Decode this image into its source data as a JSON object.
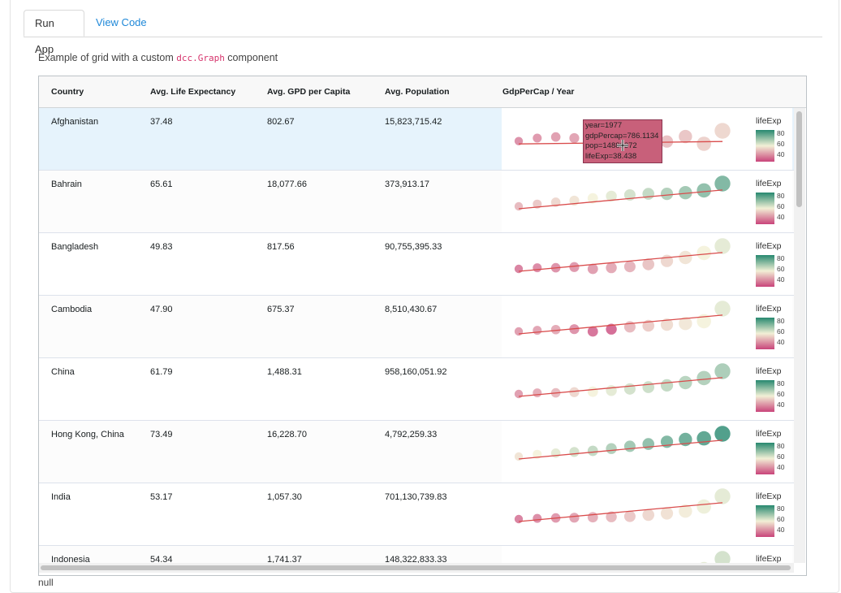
{
  "tabs": [
    {
      "label": "Run App",
      "active": true
    },
    {
      "label": "View Code",
      "active": false
    }
  ],
  "description": {
    "before": "Example of grid with a custom ",
    "code": "dcc.Graph",
    "after": " component"
  },
  "grid": {
    "columns": [
      "Country",
      "Avg. Life Expectancy",
      "Avg. GPD per Capita",
      "Avg. Population",
      "GdpPerCap / Year"
    ],
    "rows": [
      {
        "country": "Afghanistan",
        "life": "37.48",
        "gdp": "802.67",
        "pop": "15,823,715.42",
        "selected": true
      },
      {
        "country": "Bahrain",
        "life": "65.61",
        "gdp": "18,077.66",
        "pop": "373,913.17"
      },
      {
        "country": "Bangladesh",
        "life": "49.83",
        "gdp": "817.56",
        "pop": "90,755,395.33"
      },
      {
        "country": "Cambodia",
        "life": "47.90",
        "gdp": "675.37",
        "pop": "8,510,430.67"
      },
      {
        "country": "China",
        "life": "61.79",
        "gdp": "1,488.31",
        "pop": "958,160,051.92"
      },
      {
        "country": "Hong Kong, China",
        "life": "73.49",
        "gdp": "16,228.70",
        "pop": "4,792,259.33"
      },
      {
        "country": "India",
        "life": "53.17",
        "gdp": "1,057.30",
        "pop": "701,130,739.83"
      },
      {
        "country": "Indonesia",
        "life": "54.34",
        "gdp": "1,741.37",
        "pop": "148,322,833.33"
      }
    ]
  },
  "chart_data": {
    "type": "scatter",
    "color_label": "lifeExp",
    "color_ticks": [
      "80",
      "60",
      "40"
    ],
    "colors": {
      "low": "#c9447a",
      "mid": "#f2f0d6",
      "high": "#27886f",
      "trend": "#d94b4b"
    },
    "series": [
      {
        "country": "Afghanistan",
        "y": [
          0.12,
          0.25,
          0.3,
          0.25,
          0.0,
          0.12,
          0.6,
          0.55,
          0.1,
          0.32,
          0.0,
          0.57
        ],
        "life": [
          0.15,
          0.18,
          0.2,
          0.22,
          0.24,
          0.26,
          0.28,
          0.3,
          0.32,
          0.34,
          0.38,
          0.4
        ],
        "size": [
          0.2,
          0.25,
          0.3,
          0.35,
          0.4,
          0.45,
          0.5,
          0.55,
          0.6,
          0.7,
          0.8,
          0.95
        ]
      },
      {
        "country": "Bahrain",
        "y": [
          0.0,
          0.1,
          0.18,
          0.25,
          0.35,
          0.45,
          0.5,
          0.55,
          0.55,
          0.6,
          0.7,
          1.0
        ],
        "life": [
          0.3,
          0.35,
          0.4,
          0.45,
          0.5,
          0.55,
          0.6,
          0.65,
          0.7,
          0.75,
          0.8,
          0.85
        ],
        "size": [
          0.2,
          0.25,
          0.3,
          0.35,
          0.4,
          0.45,
          0.5,
          0.55,
          0.6,
          0.7,
          0.8,
          0.95
        ]
      },
      {
        "country": "Bangladesh",
        "y": [
          0.0,
          0.05,
          0.05,
          0.08,
          0.0,
          0.05,
          0.1,
          0.2,
          0.35,
          0.5,
          0.7,
          1.0
        ],
        "life": [
          0.1,
          0.13,
          0.16,
          0.18,
          0.2,
          0.24,
          0.28,
          0.33,
          0.4,
          0.45,
          0.5,
          0.55
        ],
        "size": [
          0.2,
          0.25,
          0.3,
          0.35,
          0.4,
          0.45,
          0.5,
          0.55,
          0.6,
          0.7,
          0.8,
          0.95
        ]
      },
      {
        "country": "Cambodia",
        "y": [
          0.0,
          0.05,
          0.08,
          0.1,
          0.0,
          0.1,
          0.2,
          0.25,
          0.3,
          0.35,
          0.45,
          1.0
        ],
        "life": [
          0.2,
          0.22,
          0.24,
          0.16,
          0.05,
          0.02,
          0.3,
          0.36,
          0.42,
          0.46,
          0.5,
          0.55
        ],
        "size": [
          0.2,
          0.25,
          0.3,
          0.35,
          0.4,
          0.45,
          0.5,
          0.55,
          0.6,
          0.7,
          0.8,
          0.95
        ]
      },
      {
        "country": "China",
        "y": [
          0.0,
          0.05,
          0.05,
          0.08,
          0.1,
          0.15,
          0.22,
          0.3,
          0.38,
          0.5,
          0.7,
          1.0
        ],
        "life": [
          0.2,
          0.25,
          0.3,
          0.4,
          0.5,
          0.55,
          0.6,
          0.62,
          0.65,
          0.68,
          0.7,
          0.72
        ],
        "size": [
          0.2,
          0.25,
          0.3,
          0.35,
          0.4,
          0.45,
          0.5,
          0.55,
          0.6,
          0.7,
          0.8,
          0.95
        ]
      },
      {
        "country": "Hong Kong, China",
        "y": [
          0.0,
          0.1,
          0.15,
          0.2,
          0.25,
          0.35,
          0.45,
          0.55,
          0.65,
          0.75,
          0.8,
          1.0
        ],
        "life": [
          0.45,
          0.5,
          0.55,
          0.6,
          0.65,
          0.7,
          0.75,
          0.8,
          0.85,
          0.9,
          0.95,
          1.0
        ],
        "size": [
          0.2,
          0.25,
          0.3,
          0.35,
          0.4,
          0.45,
          0.5,
          0.55,
          0.6,
          0.7,
          0.8,
          0.95
        ]
      },
      {
        "country": "India",
        "y": [
          0.0,
          0.03,
          0.05,
          0.06,
          0.08,
          0.1,
          0.12,
          0.18,
          0.25,
          0.35,
          0.55,
          1.0
        ],
        "life": [
          0.1,
          0.14,
          0.18,
          0.22,
          0.26,
          0.3,
          0.35,
          0.4,
          0.44,
          0.48,
          0.52,
          0.55
        ],
        "size": [
          0.2,
          0.25,
          0.3,
          0.35,
          0.4,
          0.45,
          0.5,
          0.55,
          0.6,
          0.7,
          0.8,
          0.95
        ]
      },
      {
        "country": "Indonesia",
        "y": [
          0.0,
          0.03,
          0.05,
          0.06,
          0.08,
          0.1,
          0.12,
          0.18,
          0.25,
          0.35,
          0.55,
          1.0
        ],
        "life": [
          0.1,
          0.14,
          0.18,
          0.22,
          0.26,
          0.3,
          0.35,
          0.4,
          0.44,
          0.5,
          0.55,
          0.6
        ],
        "size": [
          0.2,
          0.25,
          0.3,
          0.35,
          0.4,
          0.45,
          0.5,
          0.55,
          0.6,
          0.7,
          0.8,
          0.95
        ]
      }
    ]
  },
  "tooltip": {
    "lines": [
      "year=1977",
      "gdpPercap=786.1134",
      "pop=14880372",
      "lifeExp=38.438"
    ]
  },
  "output": "null"
}
